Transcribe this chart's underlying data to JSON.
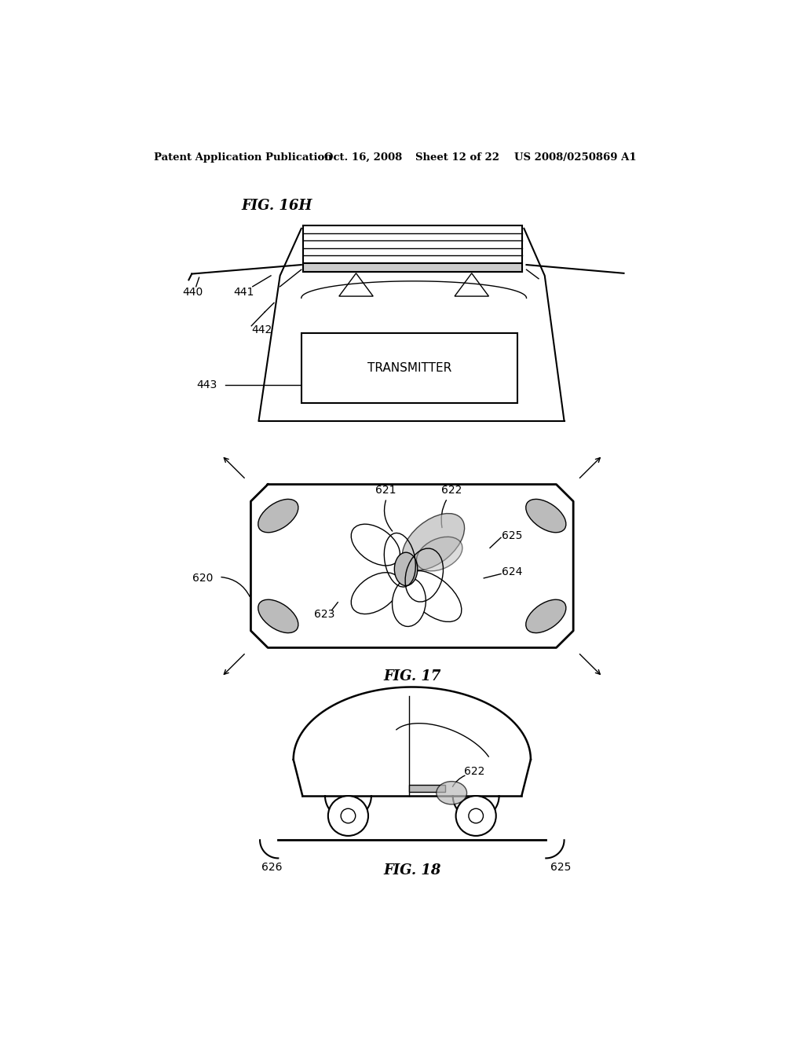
{
  "background_color": "#ffffff",
  "header_text": "Patent Application Publication",
  "header_date": "Oct. 16, 2008",
  "header_sheet": "Sheet 12 of 22",
  "header_patent": "US 2008/0250869 A1",
  "fig16h_label": "FIG. 16H",
  "fig17_label": "FIG. 17",
  "fig18_label": "FIG. 18",
  "transmitter_text": "TRANSMITTER",
  "lw": 1.5,
  "lw_thin": 1.0,
  "black": "#000000",
  "gray_fill": "#999999",
  "light_gray": "#bbbbbb"
}
